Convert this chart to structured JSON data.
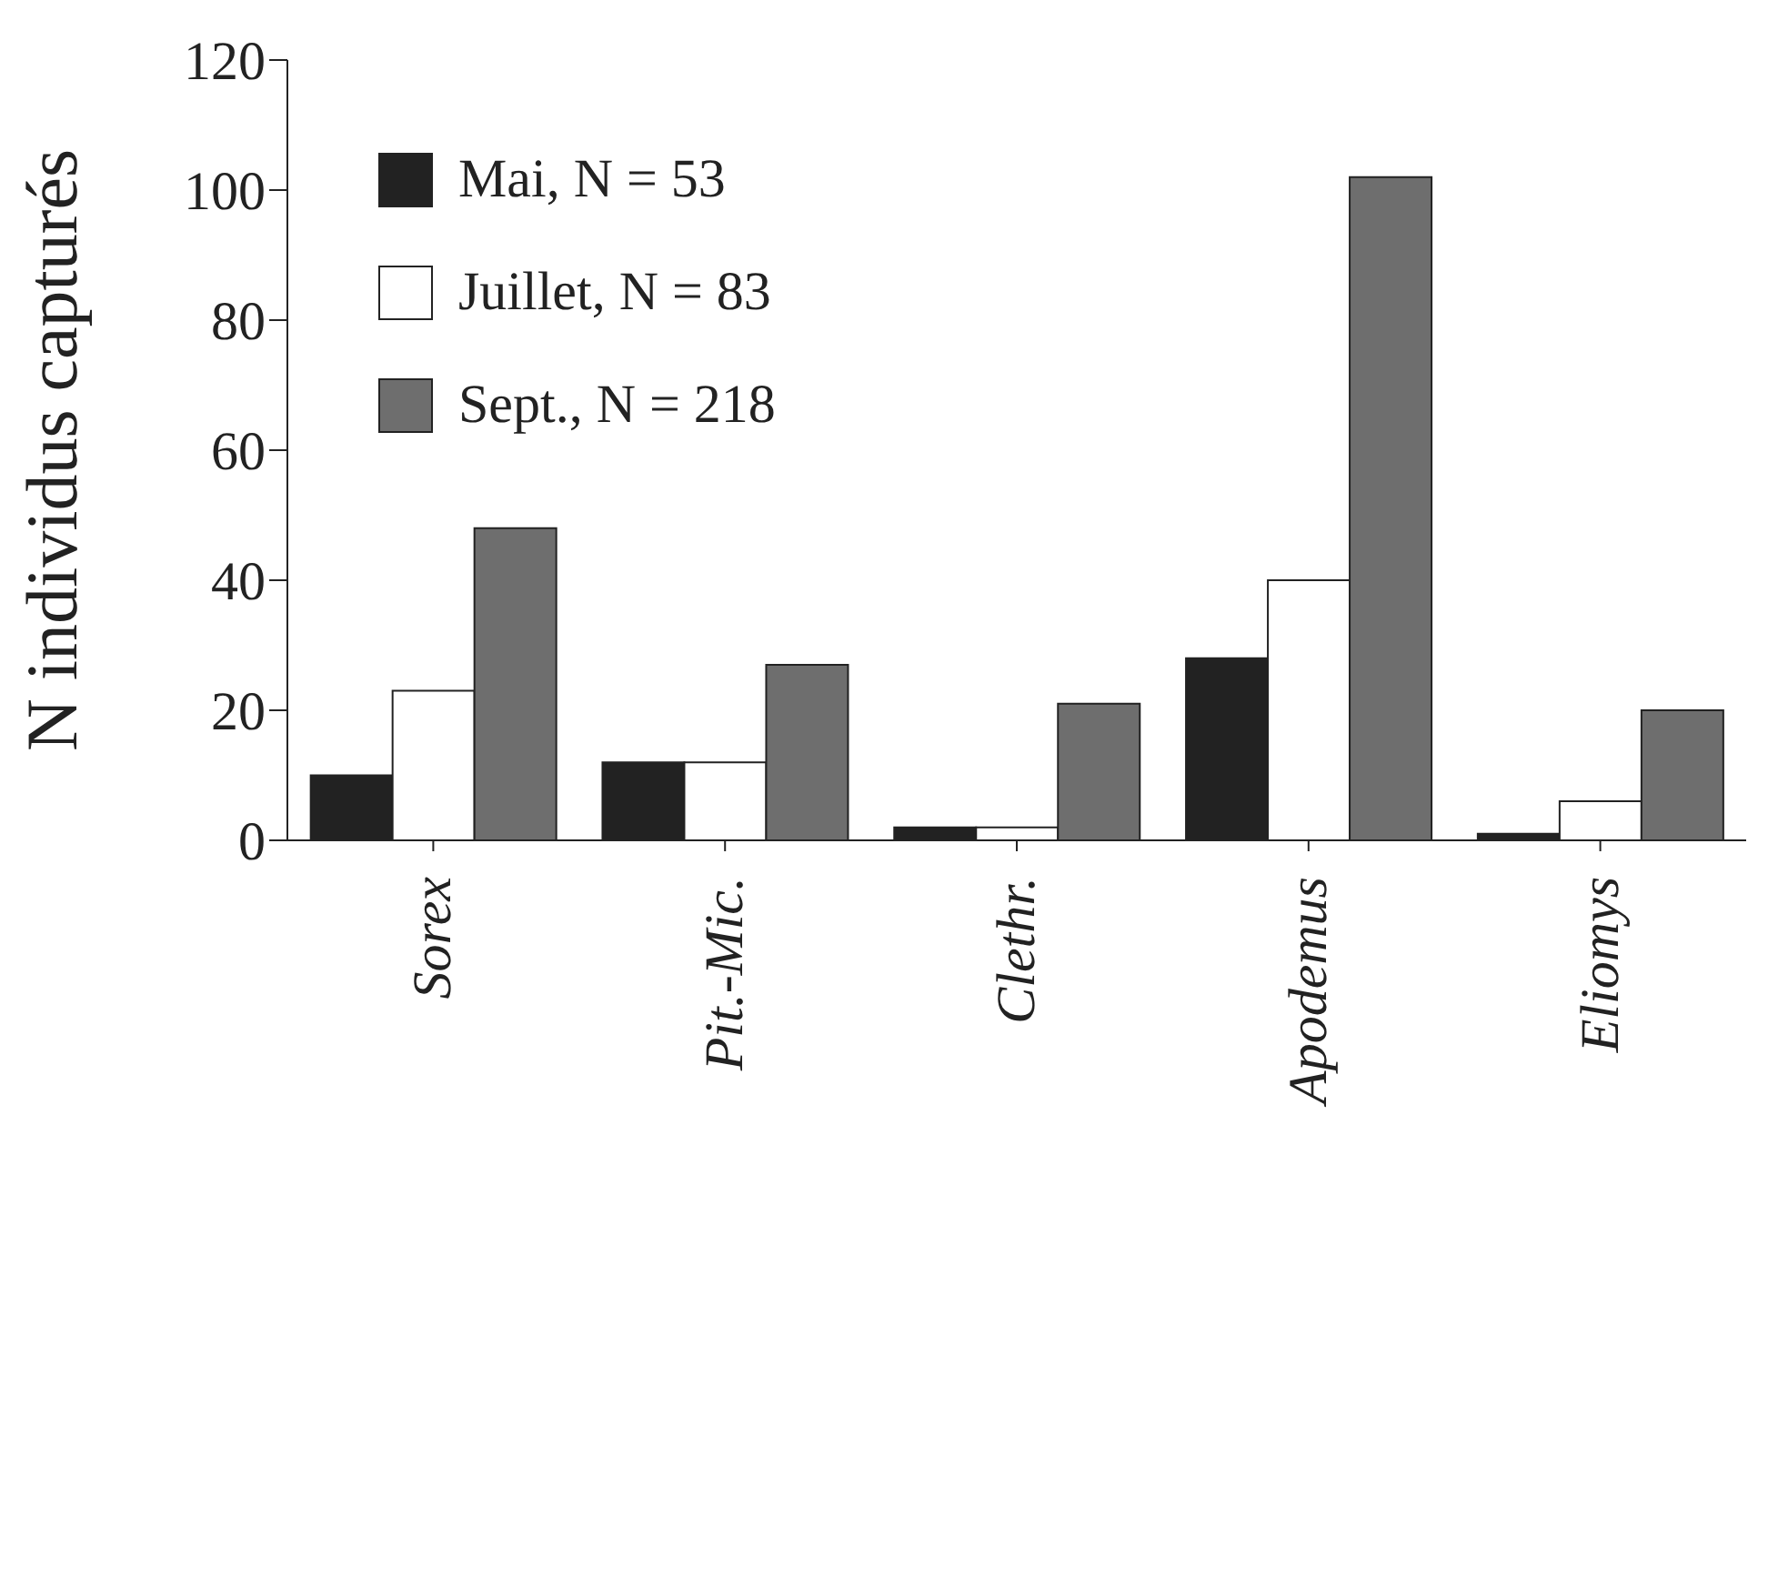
{
  "chart_data": {
    "type": "bar",
    "ylabel": "N individus capturés",
    "categories": [
      "Sorex",
      "Pit.-Mic.",
      "Clethr.",
      "Apodemus",
      "Eliomys"
    ],
    "series": [
      {
        "name": "Mai, N = 53",
        "color": "#222222",
        "values": [
          10,
          12,
          2,
          28,
          1
        ]
      },
      {
        "name": "Juillet, N = 83",
        "color": "#ffffff",
        "values": [
          23,
          12,
          2,
          40,
          6
        ]
      },
      {
        "name": "Sept., N = 218",
        "color": "#6e6e6e",
        "values": [
          48,
          27,
          21,
          102,
          20
        ]
      }
    ],
    "ylim": [
      0,
      120
    ],
    "yticks": [
      0,
      20,
      40,
      60,
      80,
      100,
      120
    ],
    "grid": false,
    "legend": "top left"
  }
}
